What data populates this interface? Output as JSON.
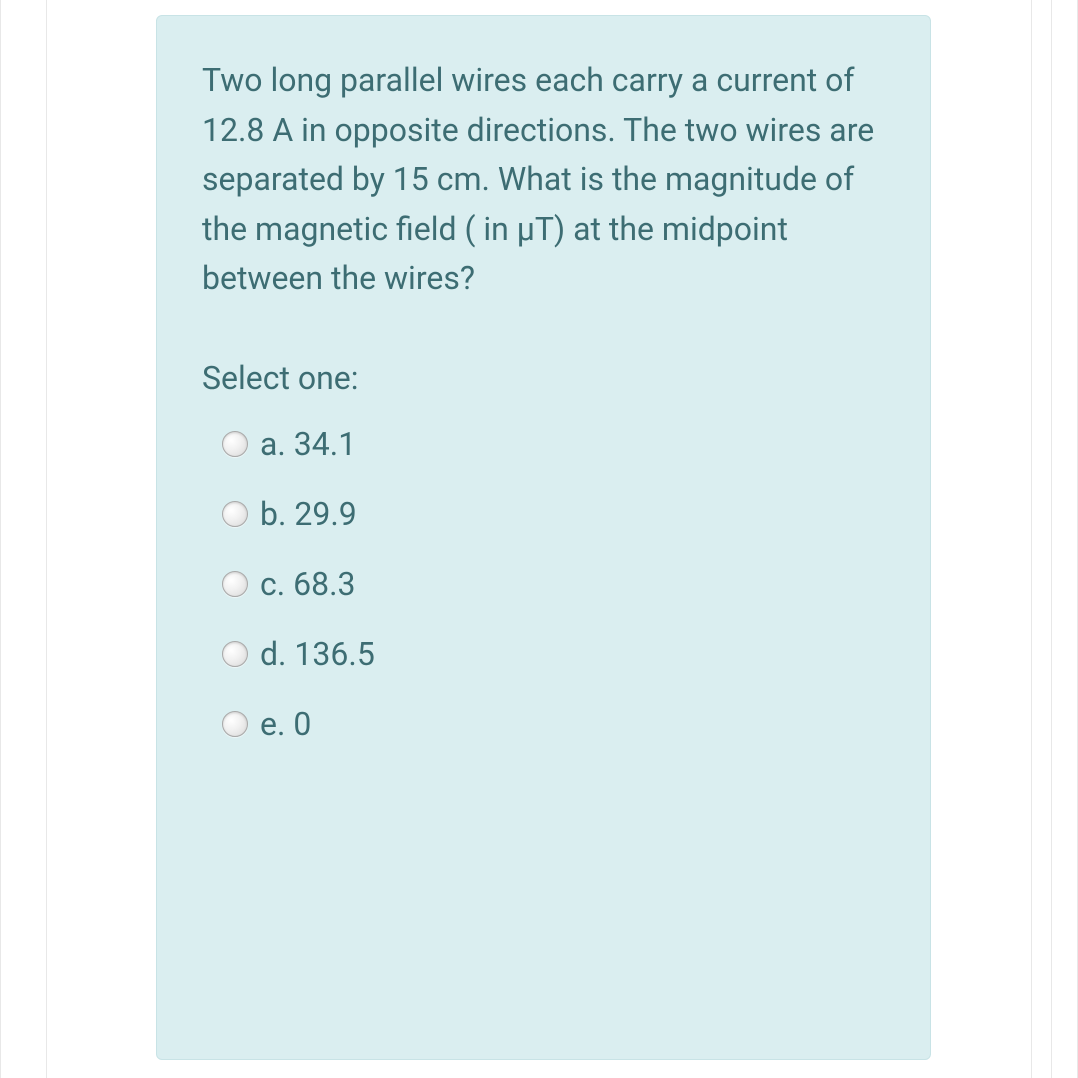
{
  "question": {
    "text": "Two long parallel wires each carry a current of 12.8 A in opposite directions.  The two wires are separated by 15 cm.  What is the magnitude of the magnetic field ( in μT) at the midpoint between the wires?",
    "prompt": "Select one:",
    "options": [
      {
        "letter": "a",
        "value": "34.1"
      },
      {
        "letter": "b",
        "value": "29.9"
      },
      {
        "letter": "c",
        "value": "68.3"
      },
      {
        "letter": "d",
        "value": "136.5"
      },
      {
        "letter": "e",
        "value": "0"
      }
    ]
  },
  "colors": {
    "card_background": "#daeef0",
    "card_border": "#c8e3e6",
    "text_color": "#3d6d73",
    "page_background": "#ffffff",
    "frame_border": "#e8e8e8"
  },
  "typography": {
    "question_fontsize": 32,
    "option_fontsize": 32,
    "line_height": 1.55
  }
}
